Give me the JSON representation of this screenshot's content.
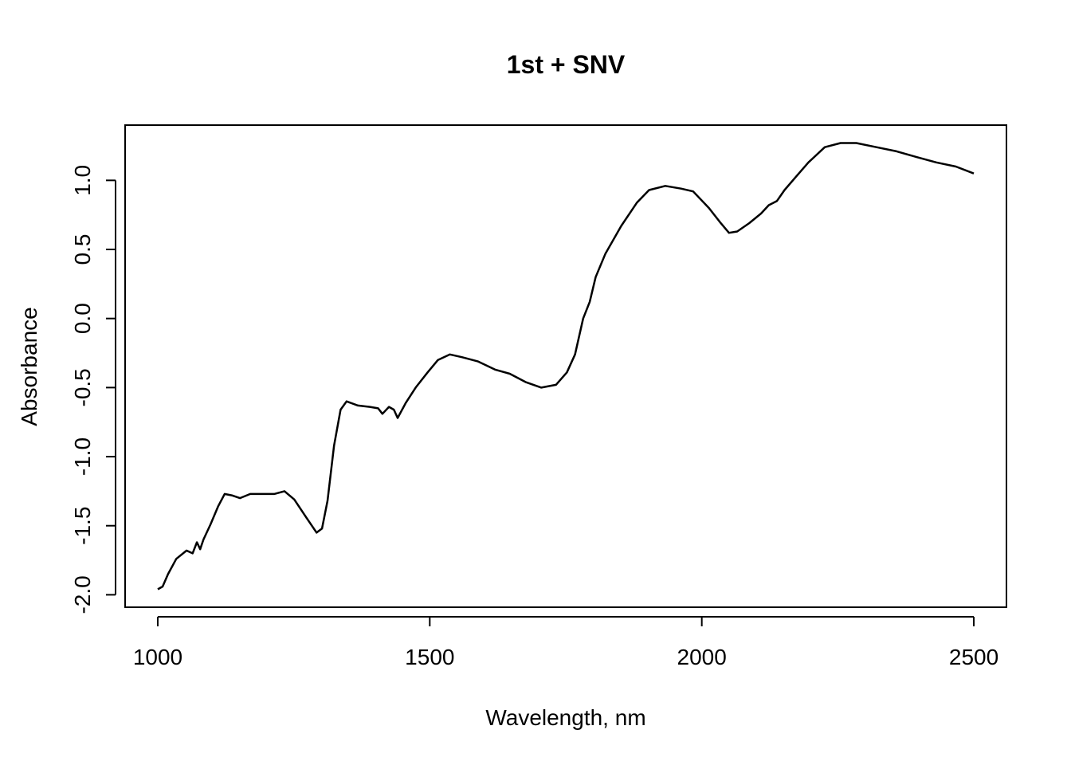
{
  "chart_data": {
    "type": "line",
    "title": "1st + SNV",
    "x_label": "Wavelength, nm",
    "y_label": "Absorbance",
    "series": [
      {
        "color": "#000000",
        "x": [
          1000,
          1009,
          1019,
          1034,
          1053,
          1064,
          1072,
          1078,
          1084,
          1097,
          1111,
          1123,
          1136,
          1151,
          1170,
          1192,
          1214,
          1233,
          1251,
          1273,
          1292,
          1302,
          1312,
          1324,
          1336,
          1347,
          1368,
          1390,
          1405,
          1413,
          1425,
          1434,
          1441,
          1456,
          1474,
          1496,
          1515,
          1537,
          1559,
          1588,
          1620,
          1647,
          1676,
          1705,
          1732,
          1752,
          1767,
          1782,
          1794,
          1805,
          1823,
          1852,
          1881,
          1903,
          1933,
          1962,
          1984,
          2013,
          2035,
          2050,
          2065,
          2087,
          2109,
          2123,
          2138,
          2152,
          2174,
          2196,
          2226,
          2255,
          2284,
          2321,
          2358,
          2394,
          2431,
          2467,
          2500
        ],
        "values": [
          -1.96,
          -1.94,
          -1.85,
          -1.74,
          -1.68,
          -1.7,
          -1.62,
          -1.67,
          -1.6,
          -1.49,
          -1.36,
          -1.27,
          -1.28,
          -1.3,
          -1.27,
          -1.27,
          -1.27,
          -1.25,
          -1.31,
          -1.44,
          -1.55,
          -1.52,
          -1.32,
          -0.92,
          -0.66,
          -0.6,
          -0.63,
          -0.64,
          -0.65,
          -0.69,
          -0.64,
          -0.66,
          -0.72,
          -0.61,
          -0.5,
          -0.39,
          -0.3,
          -0.26,
          -0.28,
          -0.31,
          -0.37,
          -0.4,
          -0.46,
          -0.5,
          -0.48,
          -0.39,
          -0.26,
          0.0,
          0.12,
          0.3,
          0.47,
          0.67,
          0.84,
          0.93,
          0.96,
          0.94,
          0.92,
          0.8,
          0.69,
          0.62,
          0.63,
          0.69,
          0.76,
          0.82,
          0.85,
          0.93,
          1.03,
          1.13,
          1.24,
          1.27,
          1.27,
          1.24,
          1.21,
          1.17,
          1.13,
          1.1,
          1.05
        ]
      }
    ],
    "xlim": [
      940,
      2560
    ],
    "ylim": [
      -2.09,
      1.4
    ],
    "xticks": [
      1000,
      1500,
      2000,
      2500
    ],
    "yticks": [
      {
        "value": -2,
        "label": "-2.0"
      },
      -1.5,
      {
        "value": -1,
        "label": "-1.0"
      },
      -0.5,
      {
        "value": 0,
        "label": "0.0"
      },
      0.5,
      {
        "value": 1,
        "label": "1.0"
      }
    ]
  }
}
